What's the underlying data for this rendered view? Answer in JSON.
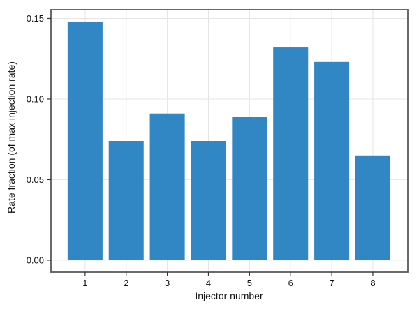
{
  "chart_data": {
    "type": "bar",
    "title": "",
    "xlabel": "Injector number",
    "ylabel": "Rate fraction (of max injection rate)",
    "categories": [
      "1",
      "2",
      "3",
      "4",
      "5",
      "6",
      "7",
      "8"
    ],
    "values": [
      0.148,
      0.074,
      0.091,
      0.074,
      0.089,
      0.132,
      0.123,
      0.065
    ],
    "series_name": "Rate fraction",
    "yticks": [
      0.0,
      0.05,
      0.1,
      0.15
    ],
    "ytick_labels": [
      "0.00",
      "0.05",
      "0.10",
      "0.15"
    ],
    "ylim": [
      -0.0074,
      0.1554
    ],
    "xlim": [
      0.17,
      8.85
    ],
    "bar_width_category_units": 0.85,
    "grid": "major gridlines: horizontal at y ticks, vertical at category centers, drawn behind bars",
    "legend": "none",
    "frame": "full box around plot area",
    "colors": {
      "bar": "#3187c4",
      "grid": "#e4e4e4",
      "frame": "#595959",
      "tick_mark": "#333333",
      "text": "#111111",
      "background": "#ffffff"
    }
  }
}
